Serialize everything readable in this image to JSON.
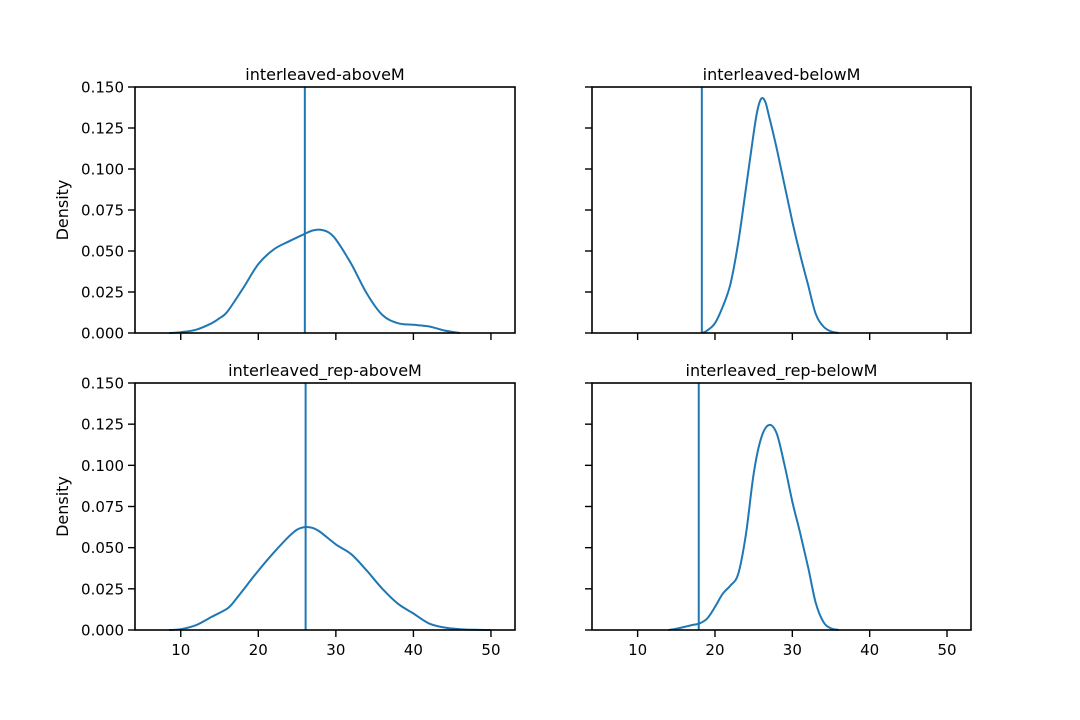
{
  "chart_data": [
    {
      "type": "line",
      "title": "interleaved-aboveM",
      "xlabel": "",
      "ylabel": "Density",
      "xlim": [
        4.1,
        53.1
      ],
      "ylim": [
        0,
        0.15
      ],
      "xticks": [
        "10",
        "20",
        "30",
        "40",
        "50"
      ],
      "yticks": [
        "0.000",
        "0.025",
        "0.050",
        "0.075",
        "0.100",
        "0.125",
        "0.150"
      ],
      "show_xticklabels": false,
      "show_yticklabels": true,
      "vline": 26.0,
      "color": "#1f77b4",
      "series": [
        {
          "x": [
            8.5,
            10,
            12,
            14,
            15,
            16,
            18,
            20,
            22,
            24,
            26,
            27,
            28,
            29,
            30,
            32,
            34,
            36,
            38,
            40,
            42,
            44,
            46
          ],
          "values": [
            0.0,
            0.0005,
            0.002,
            0.006,
            0.009,
            0.013,
            0.027,
            0.042,
            0.051,
            0.056,
            0.0605,
            0.0625,
            0.063,
            0.0615,
            0.057,
            0.042,
            0.024,
            0.011,
            0.006,
            0.005,
            0.004,
            0.0015,
            0.0
          ]
        }
      ]
    },
    {
      "type": "line",
      "title": "interleaved-belowM",
      "xlabel": "",
      "ylabel": "",
      "xlim": [
        4.1,
        53.1
      ],
      "ylim": [
        0,
        0.15
      ],
      "xticks": [
        "10",
        "20",
        "30",
        "40",
        "50"
      ],
      "yticks": [
        "0.000",
        "0.025",
        "0.050",
        "0.075",
        "0.100",
        "0.125",
        "0.150"
      ],
      "show_xticklabels": false,
      "show_yticklabels": false,
      "vline": 18.3,
      "color": "#1f77b4",
      "series": [
        {
          "x": [
            18.3,
            19,
            20,
            21,
            22,
            23,
            24,
            25,
            25.5,
            26,
            26.5,
            27,
            28,
            29,
            30,
            31,
            32,
            33,
            34,
            35,
            36
          ],
          "values": [
            0.0,
            0.0015,
            0.006,
            0.016,
            0.03,
            0.055,
            0.088,
            0.122,
            0.136,
            0.143,
            0.141,
            0.132,
            0.112,
            0.09,
            0.068,
            0.048,
            0.03,
            0.012,
            0.004,
            0.001,
            0.0
          ]
        }
      ]
    },
    {
      "type": "line",
      "title": "interleaved_rep-aboveM",
      "xlabel": "",
      "ylabel": "Density",
      "xlim": [
        4.1,
        53.1
      ],
      "ylim": [
        0,
        0.15
      ],
      "xticks": [
        "10",
        "20",
        "30",
        "40",
        "50"
      ],
      "yticks": [
        "0.000",
        "0.025",
        "0.050",
        "0.075",
        "0.100",
        "0.125",
        "0.150"
      ],
      "show_xticklabels": true,
      "show_yticklabels": true,
      "vline": 26.1,
      "color": "#1f77b4",
      "series": [
        {
          "x": [
            8.5,
            10,
            12,
            14,
            16,
            17,
            18,
            20,
            22,
            24,
            25,
            26,
            27,
            28,
            30,
            32,
            34,
            36,
            38,
            40,
            42,
            44,
            46,
            48,
            50
          ],
          "values": [
            0.0,
            0.0005,
            0.003,
            0.008,
            0.013,
            0.018,
            0.024,
            0.036,
            0.047,
            0.057,
            0.061,
            0.0625,
            0.062,
            0.0595,
            0.052,
            0.046,
            0.036,
            0.025,
            0.016,
            0.01,
            0.004,
            0.0015,
            0.0005,
            0.0001,
            0.0
          ]
        }
      ]
    },
    {
      "type": "line",
      "title": "interleaved_rep-belowM",
      "xlabel": "",
      "ylabel": "",
      "xlim": [
        4.1,
        53.1
      ],
      "ylim": [
        0,
        0.15
      ],
      "xticks": [
        "10",
        "20",
        "30",
        "40",
        "50"
      ],
      "yticks": [
        "0.000",
        "0.025",
        "0.050",
        "0.075",
        "0.100",
        "0.125",
        "0.150"
      ],
      "show_xticklabels": true,
      "show_yticklabels": false,
      "vline": 17.9,
      "color": "#1f77b4",
      "series": [
        {
          "x": [
            14,
            15,
            16,
            17,
            18,
            19,
            20,
            21,
            22,
            23,
            24,
            25,
            26,
            27,
            28,
            29,
            30,
            31,
            32,
            33,
            34,
            35,
            36
          ],
          "values": [
            0.0,
            0.0008,
            0.0018,
            0.003,
            0.004,
            0.007,
            0.014,
            0.022,
            0.027,
            0.034,
            0.058,
            0.095,
            0.117,
            0.1245,
            0.119,
            0.1,
            0.078,
            0.059,
            0.039,
            0.017,
            0.005,
            0.001,
            0.0
          ]
        }
      ]
    }
  ]
}
